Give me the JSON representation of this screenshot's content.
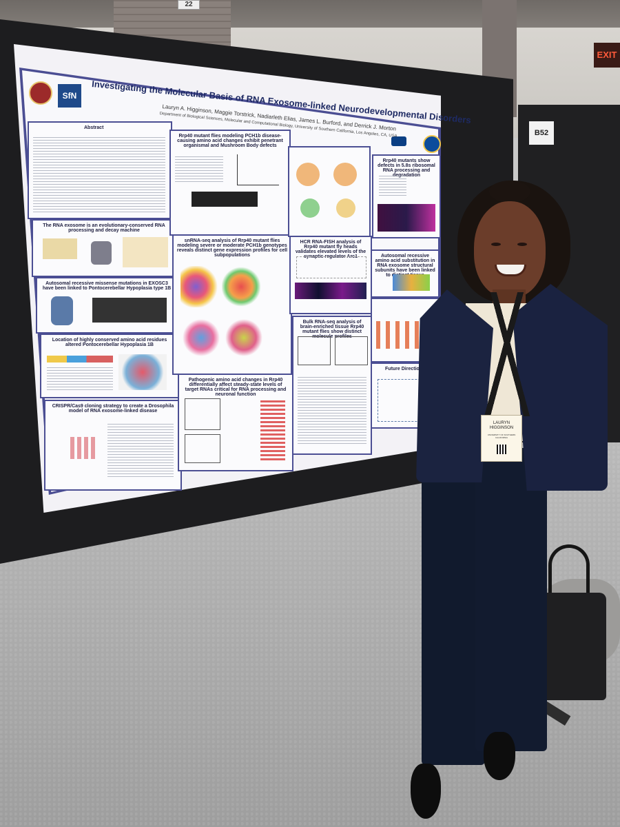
{
  "scene": {
    "booth_sign_top": "22",
    "booth_sign_side": "B52",
    "exit_sign": "EXIT"
  },
  "poster": {
    "title": "Investigating the Molecular Basis of RNA Exosome-linked Neurodevelopmental Disorders",
    "authors": "Lauryn A. Higginson, Maggie Torstrick, Nadiarleth Elias, James L. Burford, and Derrick J. Morton",
    "department": "Department of Biological Sciences, Molecular and Computational Biology, University of Southern California, Los Angeles, CA, USA",
    "logo_text": "SfN",
    "sections": [
      {
        "id": "abstract",
        "title": "Abstract"
      },
      {
        "id": "exosome",
        "title": "The RNA exosome is an evolutionary-conserved RNA processing and decay machine"
      },
      {
        "id": "autosomal",
        "title": "Autosomal recessive missense mutations in EXOSC3 have been linked to Pontocerebellar Hypoplasia type 1B"
      },
      {
        "id": "location",
        "title": "Location of highly conserved amino acid residues altered Pontocerebellar Hypoplasia 1B"
      },
      {
        "id": "crispr",
        "title": "CRISPR/Cas9 cloning strategy to create a Drosophila model of RNA exosome-linked disease"
      },
      {
        "id": "rrp40-flies",
        "title": "Rrp40 mutant flies modeling PCH1b disease-causing amino acid changes exhibit penetrant organismal and Mushroom Body defects"
      },
      {
        "id": "snrna",
        "title": "snRNA-seq analysis of Rrp40 mutant flies modeling severe or moderate PCH1b genotypes reveals distinct gene expression profiles for cell subpopulations"
      },
      {
        "id": "pathogenic",
        "title": "Pathogenic amino acid changes in Rrp40 differentially affect steady-state levels of target RNAs critical for RNA processing and neuronal function"
      },
      {
        "id": "ribosomal",
        "title": "Rrp40 mutants show defects in 5.8s ribosomal RNA processing and degradation"
      },
      {
        "id": "hcr",
        "title": "HCR RNA-FISH analysis of Rrp40 mutant fly heads validates elevated levels of the synaptic regulator Arc1"
      },
      {
        "id": "bulk",
        "title": "Bulk RNA-seq analysis of brain-enriched tissue Rrp40 mutant flies show distinct molecule profiles"
      },
      {
        "id": "autosomal-sub",
        "title": "Autosomal recessive amino acid substitution in RNA exosome structural subunits have been linked to distinct tissue disorders"
      },
      {
        "id": "future",
        "title": "Future Directions"
      }
    ]
  },
  "badge": {
    "name_line1": "LAURYN",
    "name_line2": "HIGGINSON",
    "org": "UNIVERSITY OF SOUTHERN CALIFORNIA"
  }
}
